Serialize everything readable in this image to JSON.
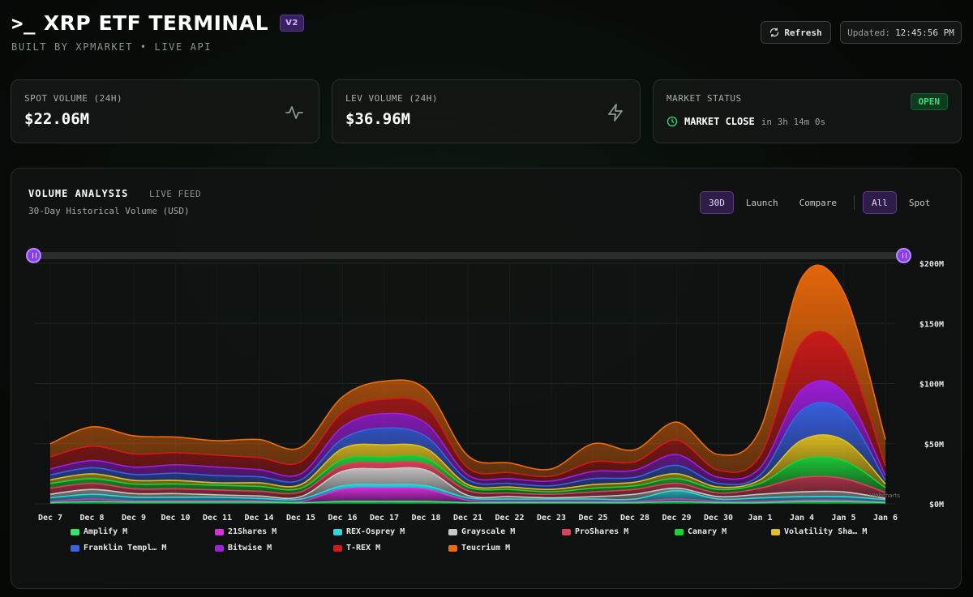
{
  "header": {
    "prompt": ">_",
    "title": "XRP ETF TERMINAL",
    "version": "V2",
    "subtitle": "BUILT BY XPMARKET • LIVE API",
    "refresh_label": "Refresh",
    "updated_label": "Updated:",
    "updated_time": "12:45:56 PM"
  },
  "cards": {
    "spot": {
      "label": "SPOT VOLUME (24H)",
      "value": "$22.06M",
      "icon": "activity-icon"
    },
    "lev": {
      "label": "LEV VOLUME (24H)",
      "value": "$36.96M",
      "icon": "lightning-icon"
    },
    "market": {
      "label": "MARKET STATUS",
      "status": "OPEN",
      "close_label": "MARKET CLOSE",
      "close_in": "in 3h 14m 0s",
      "icon": "clock-icon"
    }
  },
  "panel": {
    "title": "VOLUME ANALYSIS",
    "live_feed": "LIVE FEED",
    "subtitle": "30-Day Historical Volume (USD)",
    "range_tabs": [
      "30D",
      "Launch",
      "Compare"
    ],
    "range_active": "30D",
    "type_tabs": [
      "All",
      "Spot"
    ],
    "type_active": "All",
    "credit": "Highcharts"
  },
  "colors": {
    "accent": "#8a3cf0",
    "positive": "#33e07a"
  },
  "chart_data": {
    "type": "area",
    "stacked": true,
    "x": [
      "Dec 7",
      "Dec 8",
      "Dec 9",
      "Dec 10",
      "Dec 11",
      "Dec 14",
      "Dec 15",
      "Dec 16",
      "Dec 17",
      "Dec 18",
      "Dec 21",
      "Dec 22",
      "Dec 23",
      "Dec 25",
      "Dec 28",
      "Dec 29",
      "Dec 30",
      "Jan 1",
      "Jan 4",
      "Jan 5",
      "Jan 6"
    ],
    "y_ticks": [
      "$0M",
      "$50M",
      "$100M",
      "$150M",
      "$200M"
    ],
    "ylim": [
      0,
      200
    ],
    "grid": true,
    "legend": "bottom",
    "series": [
      {
        "name": "Amplify M",
        "color": "#2ee86a",
        "values": [
          1,
          2,
          1.5,
          1.5,
          1.5,
          1.5,
          1,
          2,
          2,
          2,
          1,
          1,
          1,
          1,
          1,
          2,
          1,
          1,
          2,
          2,
          1
        ]
      },
      {
        "name": "21Shares M",
        "color": "#d62ee0",
        "values": [
          1,
          2,
          1,
          1,
          1,
          1,
          1,
          10,
          11,
          10,
          2,
          1,
          1,
          1,
          1,
          2,
          1,
          1,
          1,
          1,
          0.5
        ]
      },
      {
        "name": "REX-Osprey M",
        "color": "#2ed8e0",
        "values": [
          3,
          4,
          3,
          3,
          3,
          2,
          2,
          3,
          3,
          3,
          2,
          2,
          2,
          2,
          2,
          7,
          2,
          3,
          3,
          3,
          2
        ]
      },
      {
        "name": "Grayscale M",
        "color": "#c8c8c8",
        "values": [
          3,
          4,
          3,
          3,
          2,
          2,
          2,
          12,
          13,
          13,
          2,
          2,
          1,
          2,
          4,
          2,
          2,
          3,
          4,
          4,
          1
        ]
      },
      {
        "name": "ProShares M",
        "color": "#e0405c",
        "values": [
          5,
          5,
          4,
          4,
          4,
          4,
          4,
          5,
          5,
          5,
          4,
          3,
          3,
          4,
          4,
          4,
          3,
          5,
          12,
          11,
          5
        ]
      },
      {
        "name": "Canary M",
        "color": "#1ed23a",
        "values": [
          4,
          4,
          4,
          4,
          4,
          4,
          3,
          5,
          5,
          5,
          3,
          3,
          2,
          3,
          3,
          4,
          3,
          4,
          15,
          15,
          4
        ]
      },
      {
        "name": "Volatility Sha… M",
        "color": "#e0c020",
        "values": [
          3,
          4,
          3,
          3,
          2,
          3,
          3,
          9,
          10,
          8,
          2,
          2,
          2,
          3,
          3,
          4,
          2,
          3,
          16,
          17,
          3
        ]
      },
      {
        "name": "Franklin Templ… M",
        "color": "#3a62e8",
        "values": [
          4,
          5,
          5,
          6,
          6,
          5,
          4,
          8,
          14,
          10,
          4,
          3,
          3,
          5,
          4,
          7,
          3,
          4,
          25,
          24,
          3
        ]
      },
      {
        "name": "Bitwise M",
        "color": "#a21ee0",
        "values": [
          5,
          6,
          6,
          7,
          7,
          6,
          5,
          10,
          12,
          11,
          4,
          4,
          4,
          6,
          6,
          9,
          5,
          6,
          17,
          16,
          4
        ]
      },
      {
        "name": "T-REX M",
        "color": "#d21a1a",
        "values": [
          10,
          12,
          11,
          10,
          10,
          10,
          10,
          12,
          12,
          14,
          6,
          5,
          4,
          8,
          7,
          12,
          6,
          10,
          39,
          35,
          8
        ]
      },
      {
        "name": "Teucrium M",
        "color": "#f06a0a",
        "values": [
          11,
          16,
          15,
          13,
          12,
          15,
          12,
          13,
          15,
          14,
          10,
          8,
          6,
          15,
          10,
          15,
          13,
          22,
          54,
          48,
          22
        ]
      }
    ]
  }
}
